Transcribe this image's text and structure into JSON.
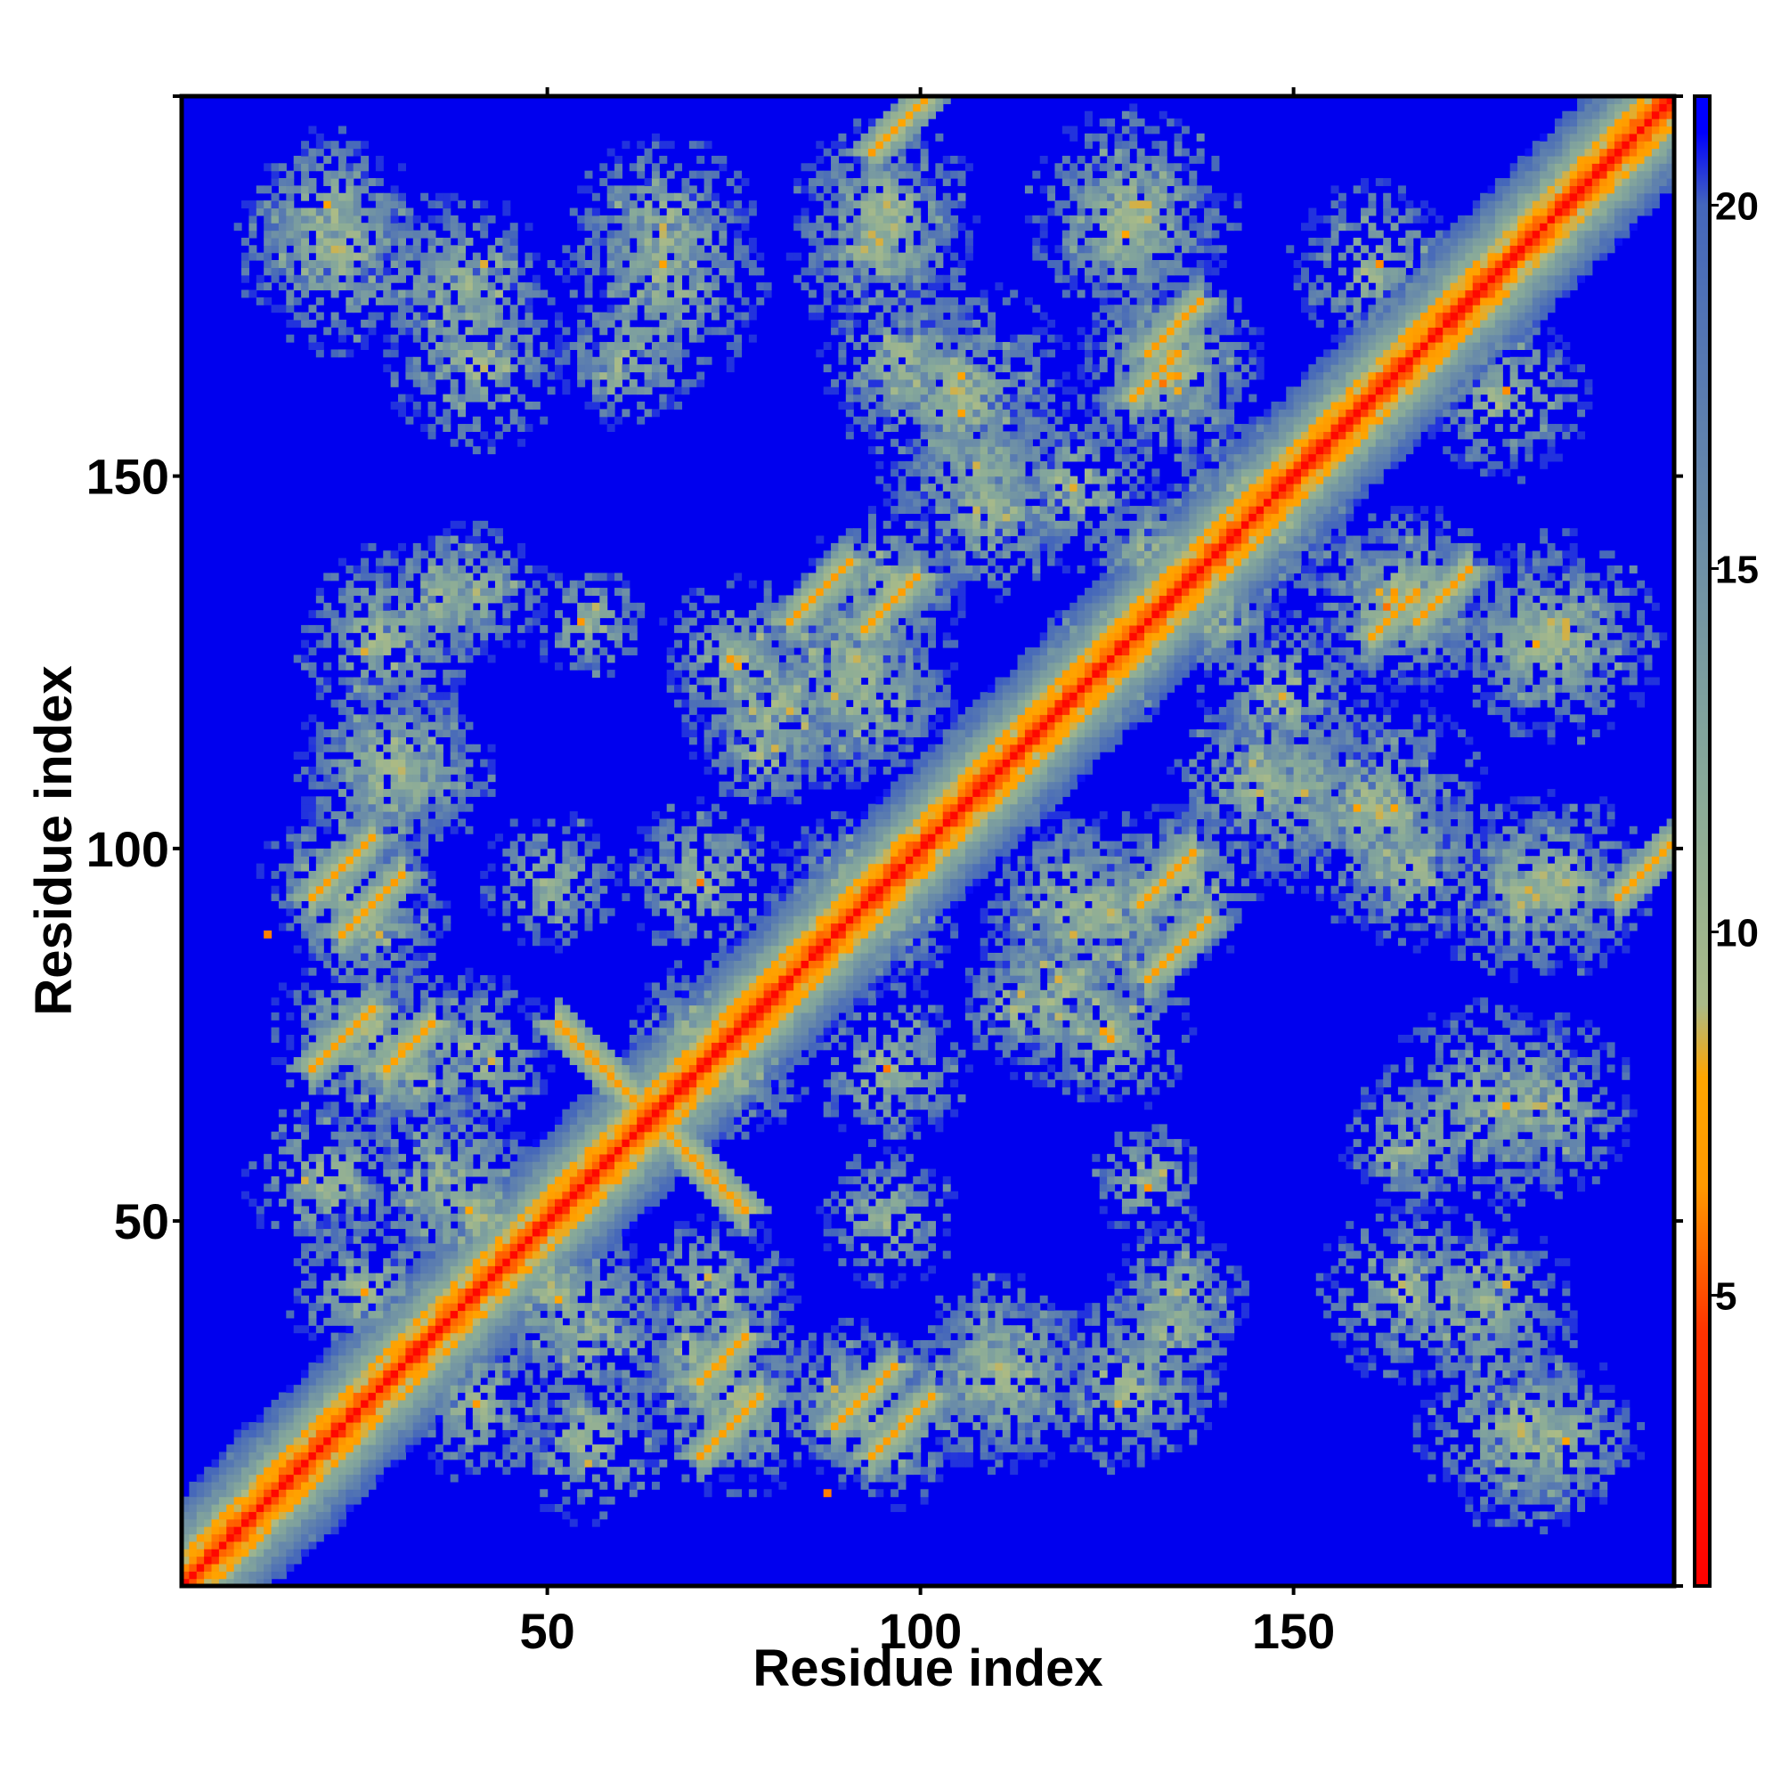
{
  "chart_data": {
    "type": "heatmap",
    "title": "",
    "xlabel": "Residue index",
    "ylabel": "Residue index",
    "xlim": [
      1,
      201
    ],
    "ylim": [
      1,
      201
    ],
    "x_ticks": [
      "50",
      "100",
      "150"
    ],
    "y_ticks": [
      "50",
      "100",
      "150"
    ],
    "x_tick_values": [
      50,
      100,
      150
    ],
    "y_tick_values": [
      50,
      100,
      150
    ],
    "colorbar": {
      "ticks": [
        "5",
        "10",
        "15",
        "20"
      ],
      "tick_values": [
        5,
        10,
        15,
        20
      ],
      "range": [
        1,
        21.5
      ],
      "stops": [
        {
          "value": 1,
          "color": "#ff0000"
        },
        {
          "value": 4.5,
          "color": "#ff3300"
        },
        {
          "value": 6.5,
          "color": "#ff9900"
        },
        {
          "value": 8.0,
          "color": "#ffa500"
        },
        {
          "value": 9.0,
          "color": "#aabb88"
        },
        {
          "value": 12.0,
          "color": "#88aa99"
        },
        {
          "value": 16.0,
          "color": "#6688aa"
        },
        {
          "value": 20.0,
          "color": "#4466bb"
        },
        {
          "value": 21.0,
          "color": "#0000ff"
        }
      ]
    },
    "background_color": "#0000ee",
    "cap_value": 21,
    "diagonal": {
      "core_value": 1.5,
      "band_halfwidth": 3
    },
    "contact_bands": [
      {
        "orientation": "anti",
        "sum": 127,
        "from_x": 52,
        "to_x": 76,
        "min_value": 6.5
      },
      {
        "orientation": "parallel",
        "offset": 52,
        "from_x": 18,
        "to_x": 26,
        "min_value": 6.8
      },
      {
        "orientation": "parallel",
        "offset": 75,
        "from_x": 18,
        "to_x": 26,
        "min_value": 6.8
      },
      {
        "orientation": "parallel",
        "offset": 100,
        "from_x": 93,
        "to_x": 101,
        "min_value": 6.8
      },
      {
        "orientation": "parallel",
        "offset": -48,
        "from_x": 130,
        "to_x": 138,
        "min_value": 6.8
      },
      {
        "orientation": "parallel",
        "offset": -32,
        "from_x": 160,
        "to_x": 166,
        "min_value": 6.8
      },
      {
        "orientation": "parallel",
        "offset": -66,
        "from_x": 88,
        "to_x": 96,
        "min_value": 6.8
      },
      {
        "orientation": "parallel",
        "offset": -42,
        "from_x": 70,
        "to_x": 76,
        "min_value": 6.8
      },
      {
        "orientation": "parallel",
        "offset": 37,
        "from_x": 92,
        "to_x": 99,
        "min_value": 6.8
      },
      {
        "orientation": "parallel",
        "offset": 36,
        "from_x": 130,
        "to_x": 137,
        "min_value": 6.8
      }
    ],
    "contact_patches": [
      {
        "x": 20,
        "y": 185,
        "r": 7
      },
      {
        "x": 38,
        "y": 175,
        "r": 8
      },
      {
        "x": 65,
        "y": 183,
        "r": 8
      },
      {
        "x": 94,
        "y": 180,
        "r": 8
      },
      {
        "x": 127,
        "y": 182,
        "r": 8
      },
      {
        "x": 160,
        "y": 178,
        "r": 7
      },
      {
        "x": 105,
        "y": 160,
        "r": 10
      },
      {
        "x": 133,
        "y": 163,
        "r": 8
      },
      {
        "x": 108,
        "y": 145,
        "r": 8
      },
      {
        "x": 145,
        "y": 145,
        "r": 8
      },
      {
        "x": 165,
        "y": 133,
        "r": 8
      },
      {
        "x": 185,
        "y": 128,
        "r": 9
      },
      {
        "x": 28,
        "y": 128,
        "r": 8
      },
      {
        "x": 40,
        "y": 134,
        "r": 6
      },
      {
        "x": 30,
        "y": 110,
        "r": 8
      },
      {
        "x": 22,
        "y": 95,
        "r": 7
      },
      {
        "x": 25,
        "y": 75,
        "r": 8
      },
      {
        "x": 40,
        "y": 72,
        "r": 7
      },
      {
        "x": 90,
        "y": 125,
        "r": 9
      },
      {
        "x": 80,
        "y": 118,
        "r": 8
      },
      {
        "x": 70,
        "y": 95,
        "r": 7
      },
      {
        "x": 93,
        "y": 90,
        "r": 7
      },
      {
        "x": 120,
        "y": 92,
        "r": 8
      },
      {
        "x": 135,
        "y": 95,
        "r": 7
      },
      {
        "x": 150,
        "y": 108,
        "r": 7
      },
      {
        "x": 160,
        "y": 105,
        "r": 7
      },
      {
        "x": 148,
        "y": 120,
        "r": 7
      },
      {
        "x": 165,
        "y": 97,
        "r": 7
      },
      {
        "x": 185,
        "y": 95,
        "r": 8
      },
      {
        "x": 175,
        "y": 65,
        "r": 9
      },
      {
        "x": 165,
        "y": 60,
        "r": 6
      },
      {
        "x": 165,
        "y": 40,
        "r": 8
      },
      {
        "x": 180,
        "y": 22,
        "r": 9
      },
      {
        "x": 133,
        "y": 35,
        "r": 6
      },
      {
        "x": 110,
        "y": 28,
        "r": 8
      },
      {
        "x": 90,
        "y": 25,
        "r": 7
      },
      {
        "x": 70,
        "y": 30,
        "r": 7
      },
      {
        "x": 55,
        "y": 35,
        "r": 8
      },
      {
        "x": 40,
        "y": 50,
        "r": 7
      },
      {
        "x": 20,
        "y": 55,
        "r": 7
      },
      {
        "x": 25,
        "y": 40,
        "r": 7
      },
      {
        "x": 12,
        "y": 15,
        "r": 5
      },
      {
        "x": 78,
        "y": 112,
        "r": 5
      },
      {
        "x": 110,
        "y": 110,
        "r": 6
      },
      {
        "x": 125,
        "y": 75,
        "r": 7
      },
      {
        "x": 70,
        "y": 75,
        "r": 6
      },
      {
        "x": 50,
        "y": 95,
        "r": 6
      },
      {
        "x": 55,
        "y": 130,
        "r": 5
      },
      {
        "x": 125,
        "y": 125,
        "r": 6
      },
      {
        "x": 140,
        "y": 130,
        "r": 5
      }
    ],
    "outlier_points": [
      {
        "x": 12,
        "y": 88,
        "value": 6.0
      },
      {
        "x": 87,
        "y": 13,
        "value": 6.0
      }
    ]
  }
}
